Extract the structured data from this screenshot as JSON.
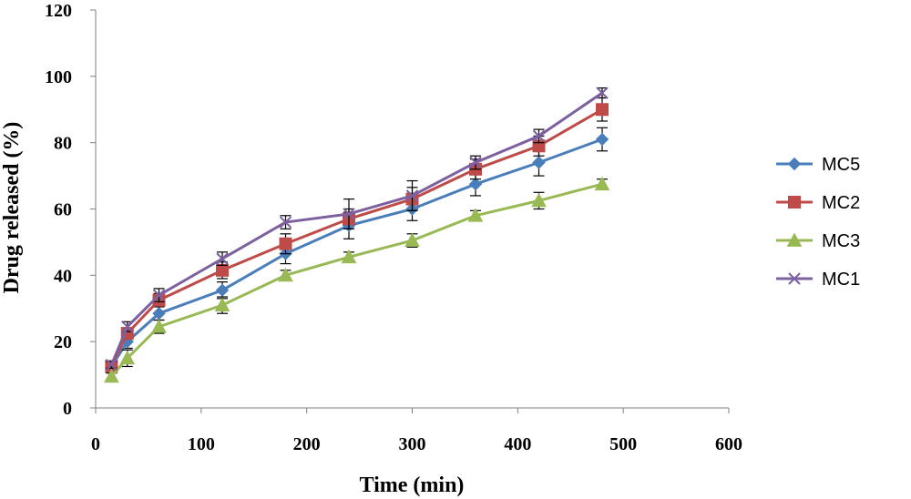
{
  "chart_data": {
    "type": "line",
    "title": "",
    "xlabel": "Time (min)",
    "ylabel": "Drug released  (%)",
    "xlim": [
      0,
      600
    ],
    "ylim": [
      0,
      120
    ],
    "xticks": [
      0,
      100,
      200,
      300,
      400,
      500,
      600
    ],
    "yticks": [
      0,
      20,
      40,
      60,
      80,
      100,
      120
    ],
    "grid": false,
    "legend_position": "right",
    "x": [
      15,
      30,
      60,
      120,
      180,
      240,
      300,
      360,
      420,
      480
    ],
    "series": [
      {
        "name": "MC5",
        "color": "#4A7EBB",
        "marker": "diamond",
        "values": [
          12.5,
          20,
          28.5,
          35.5,
          46.5,
          55,
          60,
          67.5,
          74,
          81
        ],
        "errors": [
          1.5,
          2,
          2,
          2.5,
          3,
          4,
          3.5,
          3.5,
          4,
          3.5
        ]
      },
      {
        "name": "MC2",
        "color": "#BE4B48",
        "marker": "square",
        "values": [
          12.5,
          22.5,
          32.5,
          41.5,
          49.5,
          57,
          63,
          72,
          79,
          90
        ],
        "errors": [
          1,
          1.5,
          2,
          2.5,
          3,
          3,
          3.5,
          3,
          3,
          3.5
        ]
      },
      {
        "name": "MC3",
        "color": "#98B954",
        "marker": "triangle",
        "values": [
          9.5,
          15,
          24.5,
          31,
          40,
          45.5,
          50.5,
          58,
          62.5,
          67.5
        ],
        "errors": [
          1,
          2.5,
          2,
          2.5,
          1.5,
          1.5,
          2,
          1.5,
          2.5,
          1.5
        ]
      },
      {
        "name": "MC1",
        "color": "#7D60A0",
        "marker": "x",
        "values": [
          13,
          24.5,
          34,
          45,
          56,
          58.5,
          64,
          74,
          82,
          95
        ],
        "errors": [
          1,
          1.5,
          2,
          2,
          2,
          4.5,
          4.5,
          2,
          2,
          1.5
        ]
      }
    ]
  }
}
